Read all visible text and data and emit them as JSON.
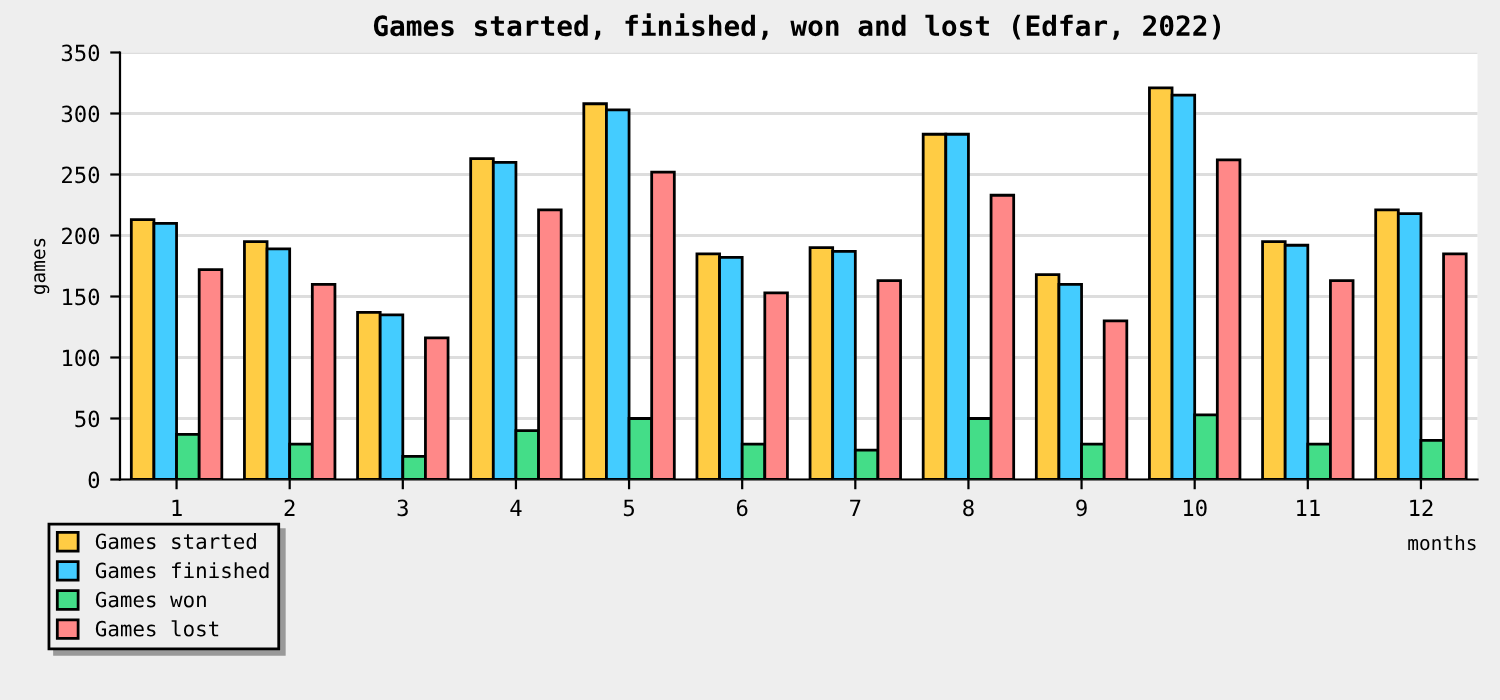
{
  "chart_data": {
    "type": "bar",
    "title": "Games started, finished, won and lost (Edfar, 2022)",
    "xlabel": "months",
    "ylabel": "games",
    "categories": [
      "1",
      "2",
      "3",
      "4",
      "5",
      "6",
      "7",
      "8",
      "9",
      "10",
      "11",
      "12"
    ],
    "series": [
      {
        "name": "Games started",
        "color": "#ffcc44",
        "values": [
          213,
          195,
          137,
          263,
          308,
          185,
          190,
          283,
          168,
          321,
          195,
          221
        ]
      },
      {
        "name": "Games finished",
        "color": "#44ccff",
        "values": [
          210,
          189,
          135,
          260,
          303,
          182,
          187,
          283,
          160,
          315,
          192,
          218
        ]
      },
      {
        "name": "Games won",
        "color": "#44dd88",
        "values": [
          37,
          29,
          19,
          40,
          50,
          29,
          24,
          50,
          29,
          53,
          29,
          32
        ]
      },
      {
        "name": "Games lost",
        "color": "#ff8888",
        "values": [
          172,
          160,
          116,
          221,
          252,
          153,
          163,
          233,
          130,
          262,
          163,
          185
        ]
      }
    ],
    "ylim": [
      0,
      350
    ],
    "yticks": [
      0,
      50,
      100,
      150,
      200,
      250,
      300,
      350
    ],
    "grid": "y",
    "legend": "bottom left"
  }
}
